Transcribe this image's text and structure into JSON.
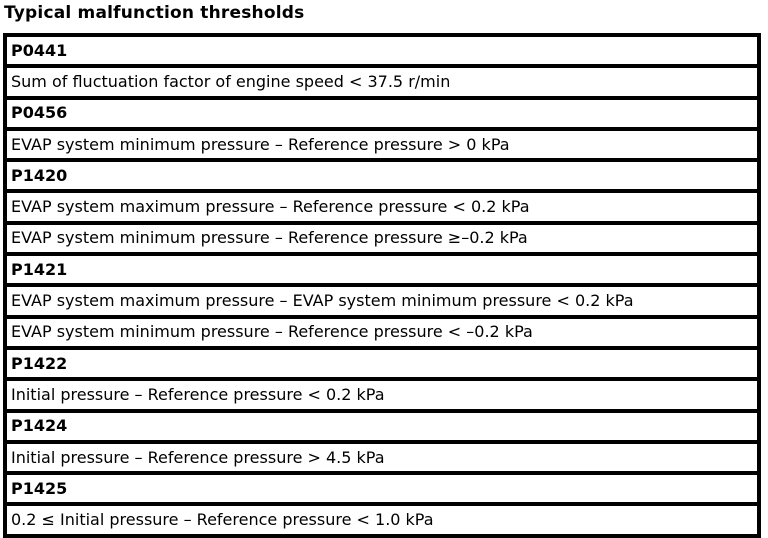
{
  "page_title": "Typical malfunction thresholds",
  "colors": {
    "text": "#000000",
    "background": "#ffffff",
    "border": "#000000"
  },
  "table": {
    "rows": [
      {
        "type": "code",
        "text": "P0441"
      },
      {
        "type": "threshold",
        "text": "Sum of fluctuation factor of engine speed < 37.5 r/min"
      },
      {
        "type": "code",
        "text": "P0456"
      },
      {
        "type": "threshold",
        "text": "EVAP system minimum pressure – Reference pressure > 0 kPa"
      },
      {
        "type": "code",
        "text": "P1420"
      },
      {
        "type": "threshold",
        "text": "EVAP system maximum pressure – Reference pressure < 0.2 kPa"
      },
      {
        "type": "threshold",
        "text": "EVAP system minimum pressure – Reference pressure ≥–0.2 kPa"
      },
      {
        "type": "code",
        "text": "P1421"
      },
      {
        "type": "threshold",
        "text": "EVAP system maximum pressure – EVAP system minimum pressure < 0.2 kPa"
      },
      {
        "type": "threshold",
        "text": "EVAP system minimum pressure – Reference pressure < –0.2 kPa"
      },
      {
        "type": "code",
        "text": "P1422"
      },
      {
        "type": "threshold",
        "text": "Initial pressure – Reference pressure < 0.2 kPa"
      },
      {
        "type": "code",
        "text": "P1424"
      },
      {
        "type": "threshold",
        "text": "Initial pressure – Reference pressure > 4.5 kPa"
      },
      {
        "type": "code",
        "text": "P1425"
      },
      {
        "type": "threshold",
        "text": "0.2 ≤ Initial pressure – Reference pressure < 1.0 kPa"
      }
    ]
  }
}
